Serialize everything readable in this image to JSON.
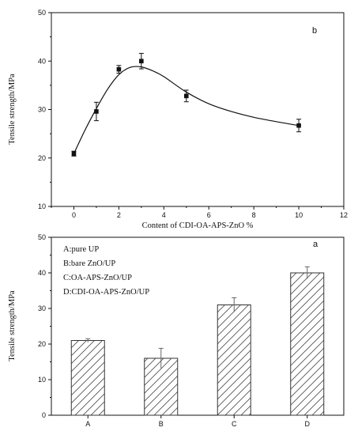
{
  "colors": {
    "axis": "#111111",
    "bar_hatch": "#555555",
    "marker": "#111111"
  },
  "chart_data": [
    {
      "type": "scatter",
      "panel_label": "b",
      "xlabel": "Content of CDI-OA-APS-ZnO %",
      "ylabel": "Tensile strength/MPa",
      "xlim": [
        -1,
        12
      ],
      "ylim": [
        10,
        50
      ],
      "xticks": [
        0,
        2,
        4,
        6,
        8,
        10,
        12
      ],
      "yticks": [
        10,
        20,
        30,
        40,
        50
      ],
      "points": [
        {
          "x": 0,
          "y": 20.9,
          "err": 0.5
        },
        {
          "x": 1,
          "y": 29.6,
          "err": 1.9
        },
        {
          "x": 2,
          "y": 38.3,
          "err": 0.8
        },
        {
          "x": 3,
          "y": 40.0,
          "err": 1.6
        },
        {
          "x": 5,
          "y": 32.8,
          "err": 1.2
        },
        {
          "x": 10,
          "y": 26.7,
          "err": 1.3
        }
      ],
      "fit_curve": {
        "x": [
          0,
          0.5,
          1,
          1.5,
          2,
          2.5,
          3,
          3.5,
          4,
          5,
          6,
          7,
          8,
          9,
          10
        ],
        "y": [
          20.9,
          25.8,
          30.2,
          34.2,
          37.2,
          38.7,
          38.8,
          38.0,
          36.8,
          33.6,
          31.2,
          29.6,
          28.4,
          27.5,
          26.7
        ]
      }
    },
    {
      "type": "bar",
      "panel_label": "a",
      "xlabel": "",
      "ylabel": "Tensile strength/MPa",
      "ylim": [
        0,
        50
      ],
      "yticks": [
        0,
        10,
        20,
        30,
        40,
        50
      ],
      "categories": [
        "A",
        "B",
        "C",
        "D"
      ],
      "values": [
        21.0,
        16.0,
        31.0,
        40.0
      ],
      "errors": [
        0.5,
        2.8,
        2.0,
        1.7
      ],
      "legend": [
        "A:pure UP",
        "B:bare ZnO/UP",
        "C:OA-APS-ZnO/UP",
        "D:CDI-OA-APS-ZnO/UP"
      ]
    }
  ]
}
